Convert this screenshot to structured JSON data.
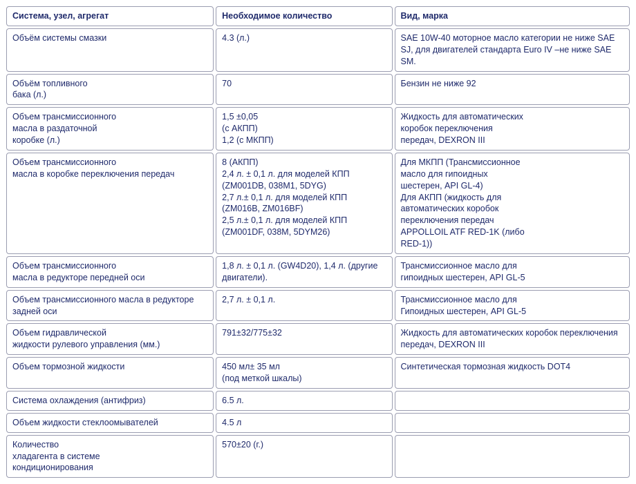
{
  "table": {
    "text_color": "#1f2a6b",
    "border_color": "#9a9cb0",
    "background_color": "#ffffff",
    "font_size_pt": 9.5,
    "column_widths_pct": [
      33.5,
      28.5,
      38
    ],
    "columns": [
      "Система, узел, агрегат",
      "Необходимое количество",
      "Вид, марка"
    ],
    "rows": [
      {
        "system": "Объём системы смазки",
        "qty": "4.3 (л.)",
        "type": "SAE 10W-40 моторное масло категории не ниже SAE SJ, для двигателей стандарта Euro IV –не ниже SAE SM."
      },
      {
        "system": "Объём топливного\nбака (л.)",
        "qty": "70",
        "type": " Бензин не ниже 92"
      },
      {
        "system": "Объем трансмиссионного\nмасла в раздаточной\nкоробке (л.)",
        "qty": "1,5 ±0,05\n(с АКПП)\n1,2 (с МКПП)",
        "type": "Жидкость для автоматических\nкоробок переключения\nпередач, DEXRON III"
      },
      {
        "system": "Объем трансмиссионного\nмасла в коробке переключения передач",
        "qty": "8 (АКПП)\n2,4 л. ± 0,1 л. для моделей КПП\n(ZM001DB, 038M1, 5DYG)\n2,7 л.± 0,1 л. для моделей КПП\n(ZM016B, ZM016BF)\n2,5 л.± 0,1 л. для моделей КПП\n(ZM001DF, 038M, 5DYM26)",
        "type": "Для МКПП (Трансмиссионное\nмасло для гипоидных\nшестерен, API GL-4)\nДля АКПП (жидкость для\nавтоматических коробок\nпереключения передач\nAPPOLLOIL ATF RED-1K (либо\nRED-1))"
      },
      {
        "system": "Объем трансмиссионного\nмасла в редукторе передней оси",
        "qty": "1,8 л. ± 0,1 л. (GW4D20), 1,4 л. (другие двигатели).",
        "type": "Трансмиссионное масло для\nгипоидных шестерен, API GL-5"
      },
      {
        "system": "Объем трансмиссионного масла в редукторе\nзадней оси",
        "qty": "2,7 л. ± 0,1 л.",
        "type": "Трансмиссионное масло для\nГипоидных шестерен, API GL-5"
      },
      {
        "system": "Объем гидравлической\nжидкости рулевого управления (мм.)",
        "qty": "791±32/775±32",
        "type": "Жидкость для автоматических коробок переключения передач, DEXRON III"
      },
      {
        "system": "Объем тормозной жидкости",
        "qty": "450 мл± 35 мл\n(под меткой шкалы)",
        "type": "Синтетическая тормозная жидкость DOT4"
      },
      {
        "system": "Система охлаждения (антифриз)",
        "qty": "6.5 л.",
        "type": ""
      },
      {
        "system": "Объем жидкости стеклоомывателей",
        "qty": "4.5 л",
        "type": ""
      },
      {
        "system": "Количество\nхладагента в системе\nкондиционирования",
        "qty": "570±20 (г.)",
        "type": ""
      }
    ]
  }
}
